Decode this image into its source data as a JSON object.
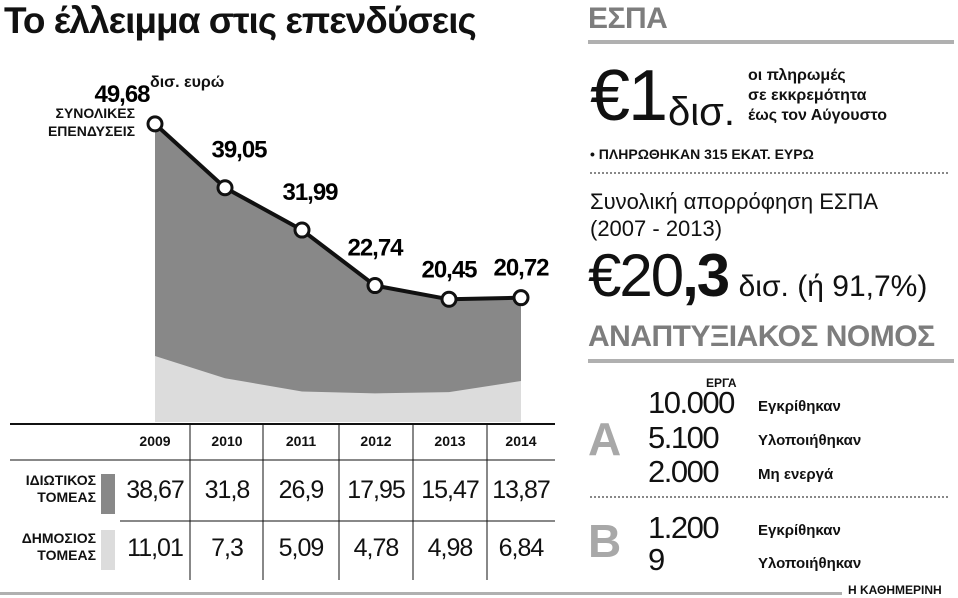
{
  "title": "Το έλλειμμα στις επενδύσεις",
  "chart_data": {
    "type": "area",
    "x": [
      "2009",
      "2010",
      "2011",
      "2012",
      "2013",
      "2014"
    ],
    "totals": [
      49.68,
      39.05,
      31.99,
      22.74,
      20.45,
      20.72
    ],
    "total_labels": [
      "49,68",
      "39,05",
      "31,99",
      "22,74",
      "20,45",
      "20,72"
    ],
    "total_unit": "δισ. ευρώ",
    "total_series_label": "ΣΥΝΟΛΙΚΕΣ ΕΠΕΝΔΥΣΕΙΣ",
    "series": [
      {
        "name": "ΙΔΙΩΤΙΚΟΣ ΤΟΜΕΑΣ",
        "values": [
          38.67,
          31.8,
          26.9,
          17.95,
          15.47,
          13.87
        ],
        "labels": [
          "38,67",
          "31,8",
          "26,9",
          "17,95",
          "15,47",
          "13,87"
        ],
        "color": "#888888"
      },
      {
        "name": "ΔΗΜΟΣΙΟΣ ΤΟΜΕΑΣ",
        "values": [
          11.01,
          7.3,
          5.09,
          4.78,
          4.98,
          6.84
        ],
        "labels": [
          "11,01",
          "7,3",
          "5,09",
          "4,78",
          "4,98",
          "6,84"
        ],
        "color": "#dcdcdc"
      }
    ],
    "ylim": [
      0,
      52
    ],
    "grid": false
  },
  "espa": {
    "heading": "ΕΣΠΑ",
    "pending_amount": "€1",
    "pending_unit": "δισ.",
    "pending_text": [
      "οι πληρωμές",
      "σε εκκρεμότητα",
      "έως τον Αύγουστο"
    ],
    "paid_note": "• ΠΛΗΡΩΘΗΚΑΝ 315 ΕΚΑΤ. ΕΥΡΩ",
    "absorption_label": [
      "Συνολική απορρόφηση ΕΣΠΑ",
      "(2007 - 2013)"
    ],
    "absorption_amount_int": "€20",
    "absorption_amount_dec": ",3",
    "absorption_unit": "δισ.",
    "absorption_pct": "(ή 91,7%)"
  },
  "law": {
    "heading": "ΑΝΑΠΤΥΞΙΑΚΟΣ ΝΟΜΟΣ",
    "column_label": "ΕΡΓΑ",
    "groups": [
      {
        "letter": "Α",
        "rows": [
          {
            "value": "10.000",
            "label": "Εγκρίθηκαν"
          },
          {
            "value": "5.100",
            "label": "Υλοποιήθηκαν"
          },
          {
            "value": "2.000",
            "label": "Μη ενεργά"
          }
        ]
      },
      {
        "letter": "Β",
        "rows": [
          {
            "value": "1.200",
            "label": "Εγκρίθηκαν"
          },
          {
            "value": "9",
            "label": "Υλοποιήθηκαν"
          }
        ]
      }
    ]
  },
  "footer": {
    "source": "Η ΚΑΘΗΜΕΡΙΝΗ"
  }
}
